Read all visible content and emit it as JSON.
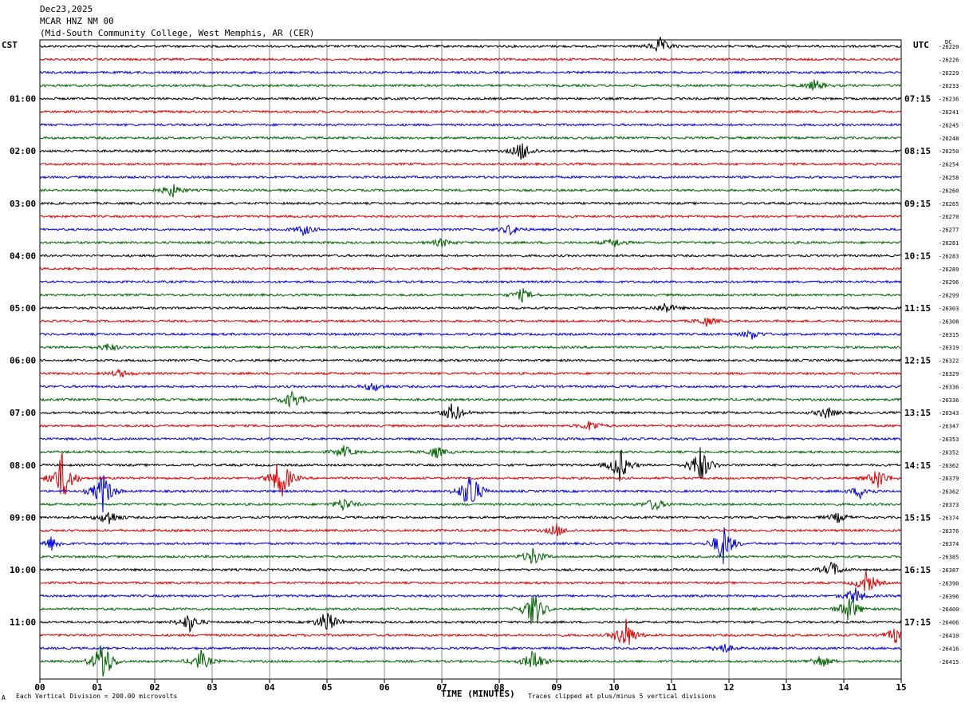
{
  "header": {
    "date": "Dec23,2025",
    "station": "MCAR HNZ NM 00",
    "location": "(Mid-South Community College, West Memphis, AR (CER)"
  },
  "left_zone": "CST",
  "right_zone": "UTC",
  "dc_label": "DC",
  "footer": {
    "scale": "Each Vertical Division = 200.00 microvolts",
    "clip": "Traces clipped at plus/minus 5 vertical divisions",
    "corner_mark": "A"
  },
  "chart_data": {
    "type": "line",
    "title": "",
    "xlabel": "TIME (MINUTES)",
    "x_ticks": [
      "00",
      "01",
      "02",
      "03",
      "04",
      "05",
      "06",
      "07",
      "08",
      "09",
      "10",
      "11",
      "12",
      "13",
      "14",
      "15"
    ],
    "xlim": [
      0,
      15
    ],
    "left_time_labels": [
      {
        "row": 4,
        "text": "01:00"
      },
      {
        "row": 8,
        "text": "02:00"
      },
      {
        "row": 12,
        "text": "03:00"
      },
      {
        "row": 16,
        "text": "04:00"
      },
      {
        "row": 20,
        "text": "05:00"
      },
      {
        "row": 24,
        "text": "06:00"
      },
      {
        "row": 28,
        "text": "07:00"
      },
      {
        "row": 32,
        "text": "08:00"
      },
      {
        "row": 36,
        "text": "09:00"
      },
      {
        "row": 40,
        "text": "10:00"
      },
      {
        "row": 44,
        "text": "11:00"
      }
    ],
    "right_time_labels": [
      {
        "row": 4,
        "text": "07:15"
      },
      {
        "row": 8,
        "text": "08:15"
      },
      {
        "row": 12,
        "text": "09:15"
      },
      {
        "row": 16,
        "text": "10:15"
      },
      {
        "row": 20,
        "text": "11:15"
      },
      {
        "row": 24,
        "text": "12:15"
      },
      {
        "row": 28,
        "text": "13:15"
      },
      {
        "row": 32,
        "text": "14:15"
      },
      {
        "row": 36,
        "text": "15:15"
      },
      {
        "row": 40,
        "text": "16:15"
      },
      {
        "row": 44,
        "text": "17:15"
      }
    ],
    "dc_offsets": [
      "-26220",
      "-26226",
      "-26229",
      "-26233",
      "-26236",
      "-26241",
      "-26245",
      "-26248",
      "-26250",
      "-26254",
      "-26258",
      "-26260",
      "-26265",
      "-26270",
      "-26277",
      "-26281",
      "-26283",
      "-26289",
      "-26296",
      "-26299",
      "-26303",
      "-26308",
      "-26315",
      "-26319",
      "-26322",
      "-26329",
      "-26336",
      "-26336",
      "-26343",
      "-26347",
      "-26353",
      "-26352",
      "-26362",
      "-26379",
      "-26362",
      "-26373",
      "-26374",
      "-26376",
      "-26374",
      "-26385",
      "-26387",
      "-26390",
      "-26396",
      "-26400",
      "-26406",
      "-26410",
      "-26416",
      "-26415"
    ],
    "trace_colors": [
      "#000000",
      "#e00000",
      "#0000e0",
      "#006400"
    ],
    "series": [
      {
        "name": "",
        "color": "#000000"
      },
      {
        "name": "",
        "color": "#e00000"
      },
      {
        "name": "",
        "color": "#0000e0"
      },
      {
        "name": "",
        "color": "#006400"
      }
    ],
    "events": [
      {
        "row": 0,
        "minute": 10.8,
        "amp": 1.2
      },
      {
        "row": 3,
        "minute": 13.5,
        "amp": 0.8
      },
      {
        "row": 8,
        "minute": 8.4,
        "amp": 1.5
      },
      {
        "row": 11,
        "minute": 2.3,
        "amp": 1.0
      },
      {
        "row": 14,
        "minute": 4.6,
        "amp": 0.8
      },
      {
        "row": 14,
        "minute": 8.2,
        "amp": 0.8
      },
      {
        "row": 15,
        "minute": 7.0,
        "amp": 0.6
      },
      {
        "row": 15,
        "minute": 10.0,
        "amp": 0.7
      },
      {
        "row": 19,
        "minute": 8.4,
        "amp": 0.9
      },
      {
        "row": 20,
        "minute": 10.9,
        "amp": 0.8
      },
      {
        "row": 21,
        "minute": 11.6,
        "amp": 0.7
      },
      {
        "row": 22,
        "minute": 12.4,
        "amp": 0.7
      },
      {
        "row": 23,
        "minute": 1.2,
        "amp": 0.6
      },
      {
        "row": 25,
        "minute": 1.4,
        "amp": 0.6
      },
      {
        "row": 26,
        "minute": 5.8,
        "amp": 0.7
      },
      {
        "row": 27,
        "minute": 4.4,
        "amp": 1.4
      },
      {
        "row": 28,
        "minute": 7.2,
        "amp": 1.6
      },
      {
        "row": 28,
        "minute": 13.7,
        "amp": 0.9
      },
      {
        "row": 29,
        "minute": 9.6,
        "amp": 0.9
      },
      {
        "row": 31,
        "minute": 5.3,
        "amp": 0.9
      },
      {
        "row": 31,
        "minute": 6.9,
        "amp": 0.9
      },
      {
        "row": 32,
        "minute": 10.1,
        "amp": 2.5
      },
      {
        "row": 32,
        "minute": 11.5,
        "amp": 2.8
      },
      {
        "row": 33,
        "minute": 0.4,
        "amp": 4.0
      },
      {
        "row": 33,
        "minute": 4.2,
        "amp": 3.5
      },
      {
        "row": 33,
        "minute": 14.6,
        "amp": 1.6
      },
      {
        "row": 34,
        "minute": 1.1,
        "amp": 3.0
      },
      {
        "row": 34,
        "minute": 7.5,
        "amp": 3.5
      },
      {
        "row": 34,
        "minute": 14.3,
        "amp": 1.0
      },
      {
        "row": 35,
        "minute": 5.3,
        "amp": 1.0
      },
      {
        "row": 35,
        "minute": 10.7,
        "amp": 1.0
      },
      {
        "row": 36,
        "minute": 1.2,
        "amp": 1.2
      },
      {
        "row": 36,
        "minute": 13.9,
        "amp": 0.7
      },
      {
        "row": 37,
        "minute": 9.0,
        "amp": 0.9
      },
      {
        "row": 38,
        "minute": 11.9,
        "amp": 3.0
      },
      {
        "row": 38,
        "minute": 0.2,
        "amp": 1.0
      },
      {
        "row": 39,
        "minute": 8.6,
        "amp": 1.4
      },
      {
        "row": 40,
        "minute": 13.8,
        "amp": 1.2
      },
      {
        "row": 41,
        "minute": 14.4,
        "amp": 1.8
      },
      {
        "row": 42,
        "minute": 14.2,
        "amp": 1.3
      },
      {
        "row": 43,
        "minute": 8.6,
        "amp": 3.0
      },
      {
        "row": 43,
        "minute": 14.1,
        "amp": 2.0
      },
      {
        "row": 44,
        "minute": 2.6,
        "amp": 1.4
      },
      {
        "row": 44,
        "minute": 5.0,
        "amp": 1.8
      },
      {
        "row": 45,
        "minute": 10.2,
        "amp": 2.5
      },
      {
        "row": 45,
        "minute": 14.9,
        "amp": 1.2
      },
      {
        "row": 46,
        "minute": 11.9,
        "amp": 0.8
      },
      {
        "row": 47,
        "minute": 1.1,
        "amp": 3.5
      },
      {
        "row": 47,
        "minute": 2.8,
        "amp": 1.6
      },
      {
        "row": 47,
        "minute": 8.6,
        "amp": 1.8
      },
      {
        "row": 47,
        "minute": 13.6,
        "amp": 1.0
      }
    ]
  }
}
